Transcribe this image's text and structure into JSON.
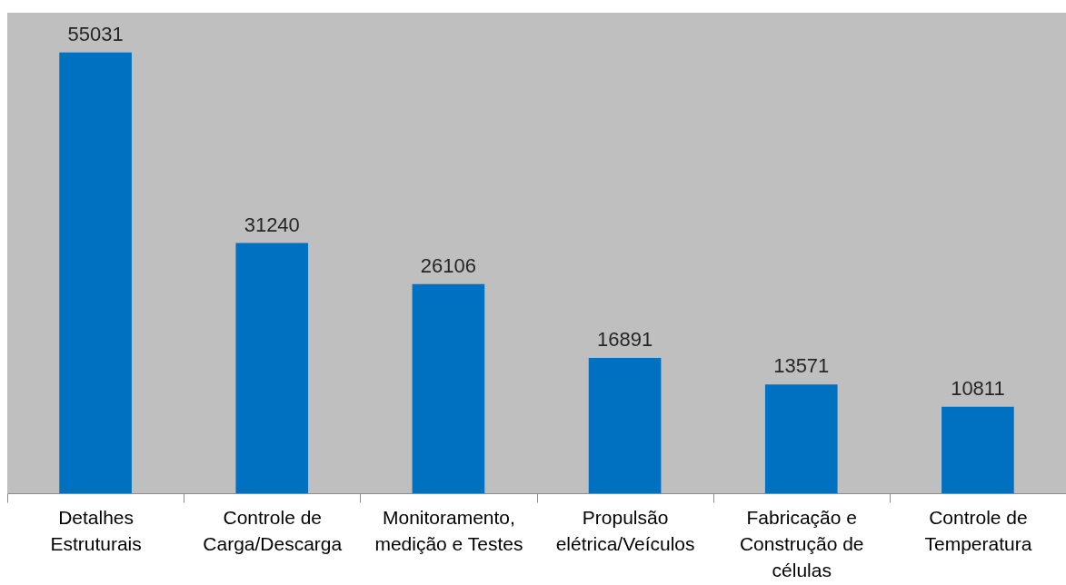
{
  "chart_data": {
    "type": "bar",
    "categories": [
      "Detalhes Estruturais",
      "Controle de Carga/Descarga",
      "Monitoramento, medição e Testes",
      "Propulsão elétrica/Veículos",
      "Fabricação e Construção de células",
      "Controle de Temperatura"
    ],
    "values": [
      55031,
      31240,
      26106,
      16891,
      13571,
      10811
    ],
    "color": "#0070c0",
    "data_labels": true
  }
}
